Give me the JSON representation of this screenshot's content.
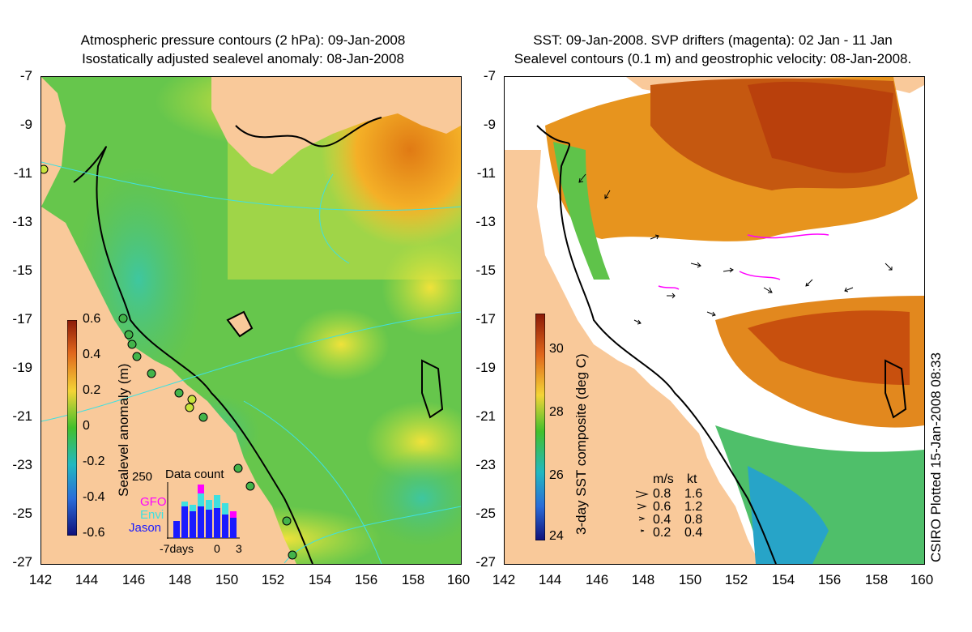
{
  "left_panel": {
    "title_line1": "Atmospheric pressure contours (2 hPa): 09-Jan-2008",
    "title_line2": "Isostatically adjusted sealevel anomaly: 08-Jan-2008",
    "colorbar_label": "Sealevel anomaly (m)",
    "colorbar_ticks": [
      "0.6",
      "0.4",
      "0.2",
      "0",
      "-0.2",
      "-0.4",
      "-0.6"
    ],
    "inset": {
      "title": "Data count",
      "y_tick": "250",
      "legend": [
        "GFO",
        "Envi",
        "Jason"
      ],
      "x_ticks": [
        "-7days",
        "0",
        "3"
      ]
    }
  },
  "right_panel": {
    "title_line1": "SST: 09-Jan-2008. SVP drifters (magenta): 02 Jan - 11 Jan",
    "title_line2": "Sealevel contours (0.1 m) and geostrophic velocity: 08-Jan-2008.",
    "colorbar_label": "3-day SST composite (deg C)",
    "colorbar_ticks": [
      "30",
      "28",
      "26",
      "24"
    ],
    "speed_legend": {
      "header_ms": "m/s",
      "header_kt": "kt",
      "rows": [
        {
          "ms": "0.8",
          "kt": "1.6"
        },
        {
          "ms": "0.6",
          "kt": "1.2"
        },
        {
          "ms": "0.4",
          "kt": "0.8"
        },
        {
          "ms": "0.2",
          "kt": "0.4"
        }
      ]
    }
  },
  "axes": {
    "y_ticks": [
      "-7",
      "-9",
      "-11",
      "-13",
      "-15",
      "-17",
      "-19",
      "-21",
      "-23",
      "-25",
      "-27"
    ],
    "x_ticks": [
      "142",
      "144",
      "146",
      "148",
      "150",
      "152",
      "154",
      "156",
      "158",
      "160"
    ]
  },
  "side_label": "CSIRO Plotted 15-Jan-2008 08:33",
  "colors": {
    "land": "#f9c99a",
    "ocean_green": "#5fc34a",
    "contour_cyan": "#3fe0e0",
    "drifter_magenta": "#ff00ff"
  }
}
